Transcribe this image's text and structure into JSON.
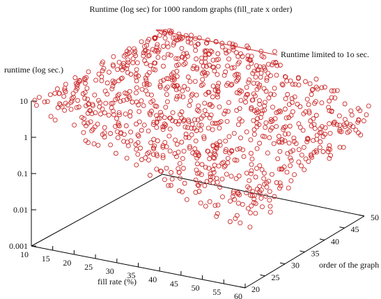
{
  "chart_data": {
    "type": "scatter",
    "projection": "3d",
    "title": "Runtime (log sec) for 1000 random graphs (fill_rate x order)",
    "xlabel": "fill rate (%)",
    "ylabel": "order of the graph",
    "zlabel": "runtime (log sec.)",
    "x_ticks": [
      "10",
      "15",
      "20",
      "25",
      "30",
      "35",
      "40",
      "45",
      "50",
      "55",
      "60"
    ],
    "y_ticks": [
      "20",
      "25",
      "30",
      "35",
      "40",
      "45",
      "50"
    ],
    "z_ticks": [
      "0.001",
      "0.01",
      "0.1",
      "1",
      "10"
    ],
    "xlim": [
      10,
      60
    ],
    "ylim": [
      20,
      50
    ],
    "zlim": [
      0.001,
      10
    ],
    "z_scale": "log",
    "point_count": 1000,
    "marker": "open-circle",
    "annotation": "Runtime limited to 1o sec.",
    "grid": false,
    "colors": {
      "points": "#cc2a2a",
      "arrow": "#cc2a2a",
      "axes": "#000000"
    }
  }
}
